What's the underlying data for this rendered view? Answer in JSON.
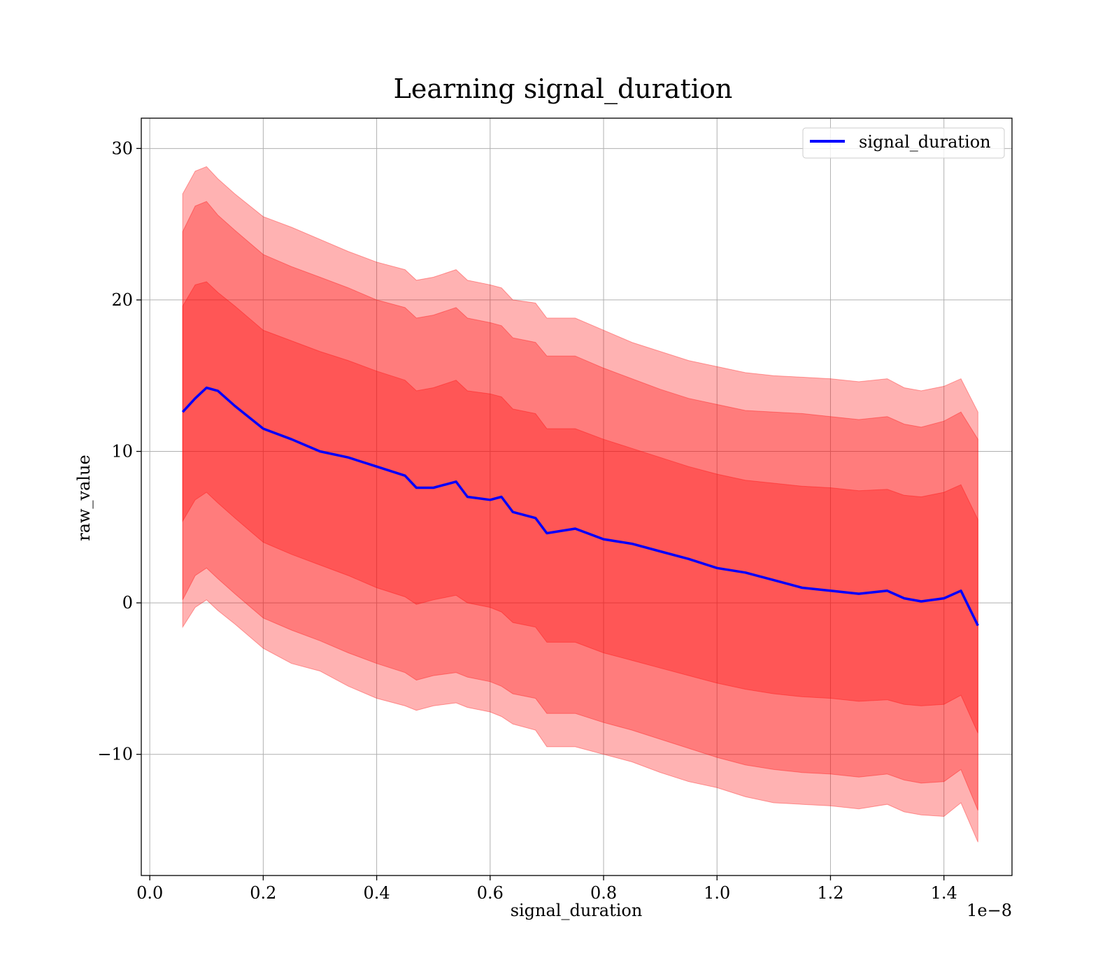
{
  "chart_data": {
    "type": "line",
    "title": "Learning signal_duration",
    "xlabel": "signal_duration",
    "ylabel": "raw_value",
    "x_offset_label": "1e−8",
    "xlim": [
      -0.015,
      1.52
    ],
    "ylim": [
      -18,
      32
    ],
    "xticks": [
      0.0,
      0.2,
      0.4,
      0.6,
      0.8,
      1.0,
      1.2,
      1.4
    ],
    "xtick_labels": [
      "0.0",
      "0.2",
      "0.4",
      "0.6",
      "0.8",
      "1.0",
      "1.2",
      "1.4"
    ],
    "yticks": [
      -10,
      0,
      10,
      20,
      30
    ],
    "ytick_labels": [
      "−10",
      "0",
      "10",
      "20",
      "30"
    ],
    "grid": true,
    "legend": {
      "position": "top-right",
      "entries": [
        "signal_duration"
      ]
    },
    "colors": {
      "line": "#0000ff",
      "band": "#ff0000",
      "band_alpha": 0.3
    },
    "x": [
      0.058,
      0.08,
      0.1,
      0.12,
      0.15,
      0.2,
      0.25,
      0.3,
      0.35,
      0.4,
      0.45,
      0.47,
      0.5,
      0.54,
      0.56,
      0.6,
      0.62,
      0.64,
      0.68,
      0.7,
      0.75,
      0.8,
      0.85,
      0.9,
      0.95,
      1.0,
      1.05,
      1.1,
      1.15,
      1.2,
      1.25,
      1.3,
      1.33,
      1.36,
      1.4,
      1.43,
      1.46
    ],
    "series": [
      {
        "name": "signal_duration",
        "values": [
          12.6,
          13.5,
          14.2,
          14.0,
          13.0,
          11.5,
          10.8,
          10.0,
          9.6,
          9.0,
          8.4,
          7.6,
          7.6,
          8.0,
          7.0,
          6.8,
          7.0,
          6.0,
          5.6,
          4.6,
          4.9,
          4.2,
          3.9,
          3.4,
          2.9,
          2.3,
          2.0,
          1.5,
          1.0,
          0.8,
          0.6,
          0.8,
          0.3,
          0.1,
          0.3,
          0.8,
          -1.5
        ]
      }
    ],
    "bands": [
      {
        "upper": [
          27.0,
          28.5,
          28.8,
          28.0,
          27.0,
          25.5,
          24.8,
          24.0,
          23.2,
          22.5,
          22.0,
          21.3,
          21.5,
          22.0,
          21.3,
          21.0,
          20.8,
          20.0,
          19.8,
          18.8,
          18.8,
          18.0,
          17.2,
          16.6,
          16.0,
          15.6,
          15.2,
          15.0,
          14.9,
          14.8,
          14.6,
          14.8,
          14.2,
          14.0,
          14.3,
          14.8,
          12.6
        ],
        "lower": [
          -1.6,
          -0.3,
          0.2,
          -0.5,
          -1.4,
          -3.0,
          -4.0,
          -4.5,
          -5.5,
          -6.3,
          -6.8,
          -7.1,
          -6.8,
          -6.6,
          -6.9,
          -7.2,
          -7.5,
          -8.0,
          -8.4,
          -9.5,
          -9.5,
          -10.0,
          -10.5,
          -11.2,
          -11.8,
          -12.2,
          -12.8,
          -13.2,
          -13.3,
          -13.4,
          -13.6,
          -13.3,
          -13.8,
          -14.0,
          -14.1,
          -13.2,
          -15.8
        ]
      },
      {
        "upper": [
          24.5,
          26.2,
          26.5,
          25.6,
          24.6,
          23.0,
          22.2,
          21.5,
          20.8,
          20.0,
          19.5,
          18.8,
          19.0,
          19.5,
          18.8,
          18.5,
          18.3,
          17.5,
          17.2,
          16.3,
          16.3,
          15.5,
          14.8,
          14.1,
          13.5,
          13.1,
          12.7,
          12.6,
          12.5,
          12.3,
          12.1,
          12.3,
          11.8,
          11.6,
          12.0,
          12.6,
          10.8
        ],
        "lower": [
          0.2,
          1.8,
          2.3,
          1.6,
          0.6,
          -1.0,
          -1.8,
          -2.5,
          -3.3,
          -4.0,
          -4.6,
          -5.1,
          -4.8,
          -4.6,
          -4.9,
          -5.2,
          -5.5,
          -6.0,
          -6.3,
          -7.3,
          -7.3,
          -7.9,
          -8.4,
          -9.0,
          -9.6,
          -10.2,
          -10.7,
          -11.0,
          -11.2,
          -11.3,
          -11.5,
          -11.3,
          -11.7,
          -11.9,
          -11.8,
          -11.0,
          -13.7
        ]
      },
      {
        "upper": [
          19.6,
          21.0,
          21.2,
          20.5,
          19.6,
          18.0,
          17.3,
          16.6,
          16.0,
          15.3,
          14.7,
          14.0,
          14.2,
          14.7,
          14.0,
          13.8,
          13.6,
          12.8,
          12.5,
          11.5,
          11.5,
          10.8,
          10.2,
          9.6,
          9.0,
          8.5,
          8.1,
          7.9,
          7.7,
          7.6,
          7.4,
          7.5,
          7.1,
          7.0,
          7.3,
          7.8,
          5.5
        ],
        "lower": [
          5.4,
          6.8,
          7.3,
          6.6,
          5.6,
          4.0,
          3.2,
          2.5,
          1.8,
          1.0,
          0.4,
          -0.1,
          0.2,
          0.5,
          0.0,
          -0.3,
          -0.6,
          -1.3,
          -1.6,
          -2.6,
          -2.6,
          -3.3,
          -3.8,
          -4.3,
          -4.8,
          -5.3,
          -5.7,
          -6.0,
          -6.2,
          -6.3,
          -6.5,
          -6.4,
          -6.7,
          -6.8,
          -6.7,
          -6.1,
          -8.6
        ]
      }
    ]
  }
}
